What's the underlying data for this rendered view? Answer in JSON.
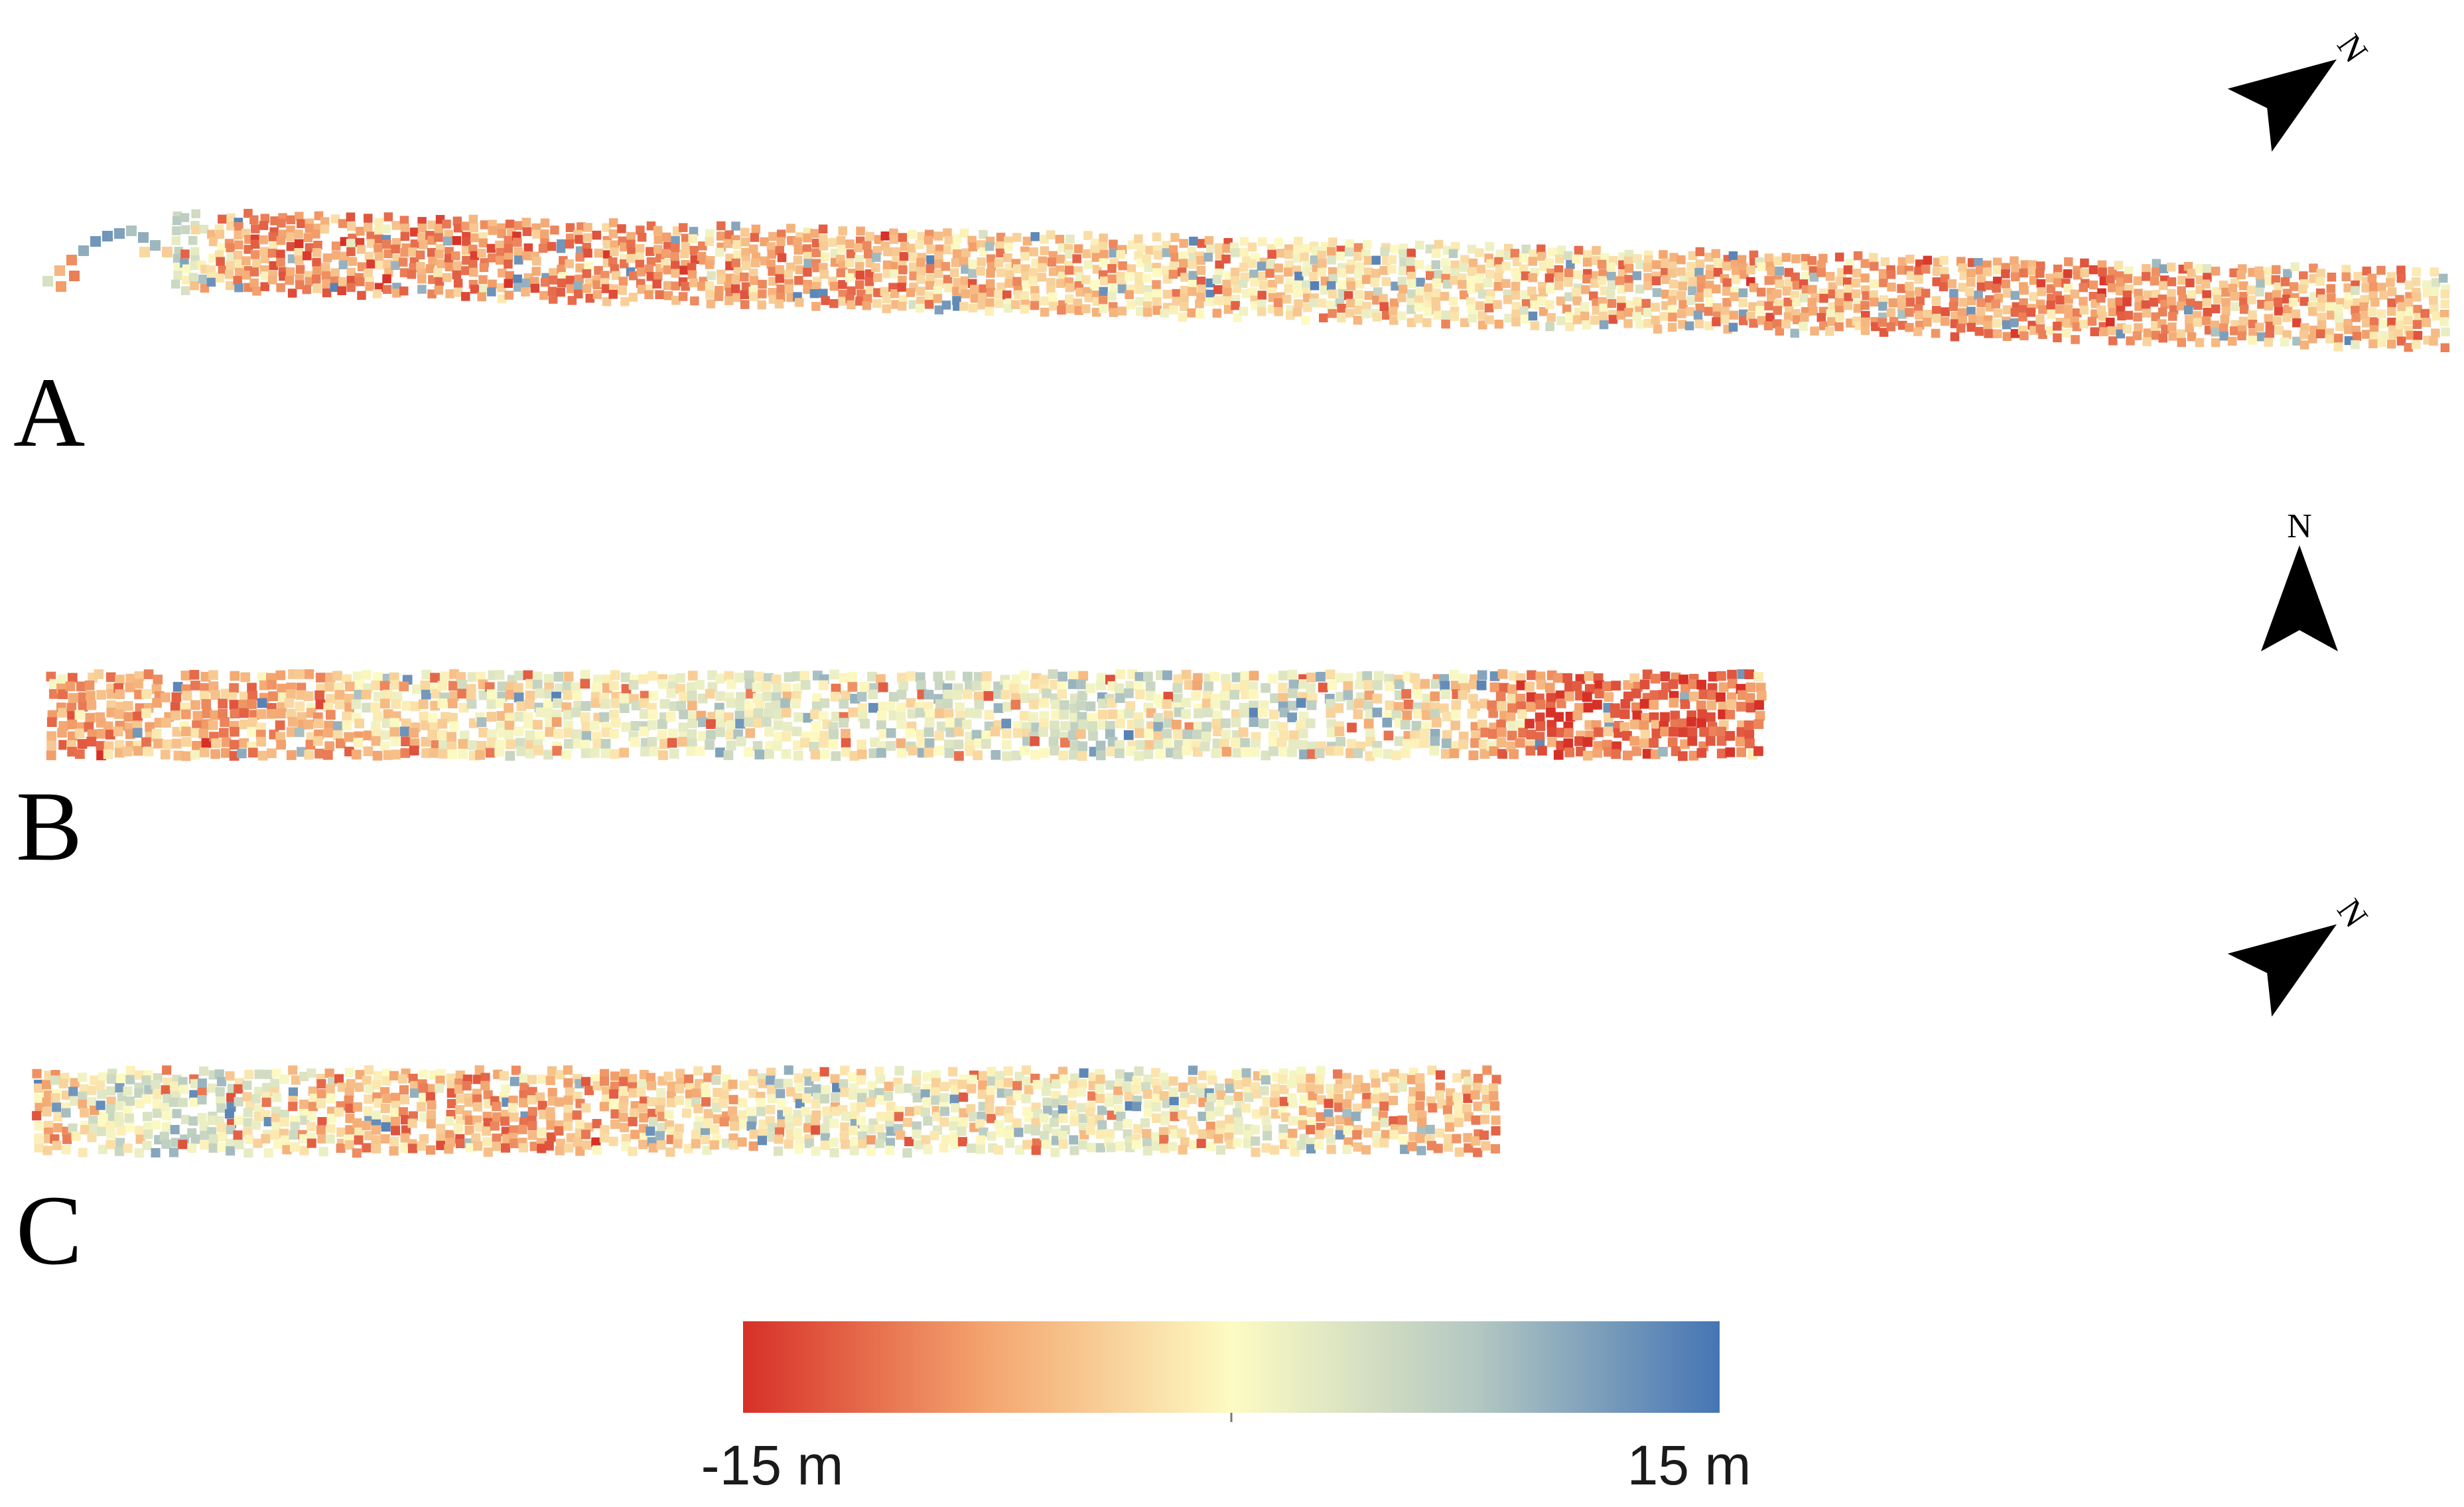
{
  "figure": {
    "panels": [
      {
        "label": "A",
        "north_label": "N",
        "north_bearing_deg": 55,
        "strip_length_cells": 260,
        "strip_tilt_deg": -1.5,
        "value_profile": [
          {
            "pos": 0.0,
            "mean": 6
          },
          {
            "pos": 0.03,
            "mean": -8
          },
          {
            "pos": 0.2,
            "mean": -8
          },
          {
            "pos": 0.4,
            "mean": -4
          },
          {
            "pos": 0.55,
            "mean": -1
          },
          {
            "pos": 0.7,
            "mean": -6
          },
          {
            "pos": 0.85,
            "mean": -8
          },
          {
            "pos": 1.0,
            "mean": -3
          }
        ]
      },
      {
        "label": "B",
        "north_label": "N",
        "north_bearing_deg": 0,
        "strip_length_cells": 180,
        "strip_tilt_deg": 0,
        "value_profile": [
          {
            "pos": 0.0,
            "mean": -7
          },
          {
            "pos": 0.12,
            "mean": -7
          },
          {
            "pos": 0.3,
            "mean": 1
          },
          {
            "pos": 0.6,
            "mean": 2
          },
          {
            "pos": 0.8,
            "mean": 0
          },
          {
            "pos": 0.88,
            "mean": -11
          },
          {
            "pos": 1.0,
            "mean": -10
          }
        ]
      },
      {
        "label": "C",
        "north_label": "N",
        "north_bearing_deg": 55,
        "strip_length_cells": 160,
        "strip_tilt_deg": 0,
        "value_profile": [
          {
            "pos": 0.0,
            "mean": -6
          },
          {
            "pos": 0.1,
            "mean": 6
          },
          {
            "pos": 0.2,
            "mean": -4
          },
          {
            "pos": 0.35,
            "mean": -7
          },
          {
            "pos": 0.55,
            "mean": 0
          },
          {
            "pos": 0.75,
            "mean": 1
          },
          {
            "pos": 1.0,
            "mean": -6
          }
        ]
      }
    ],
    "colorbar": {
      "min": -15,
      "max": 15,
      "min_label": "-15 m",
      "max_label": "15 m",
      "colors": [
        "#d73027",
        "#f4a56f",
        "#fdfbc3",
        "#b4c8c2",
        "#4575b4"
      ]
    }
  }
}
